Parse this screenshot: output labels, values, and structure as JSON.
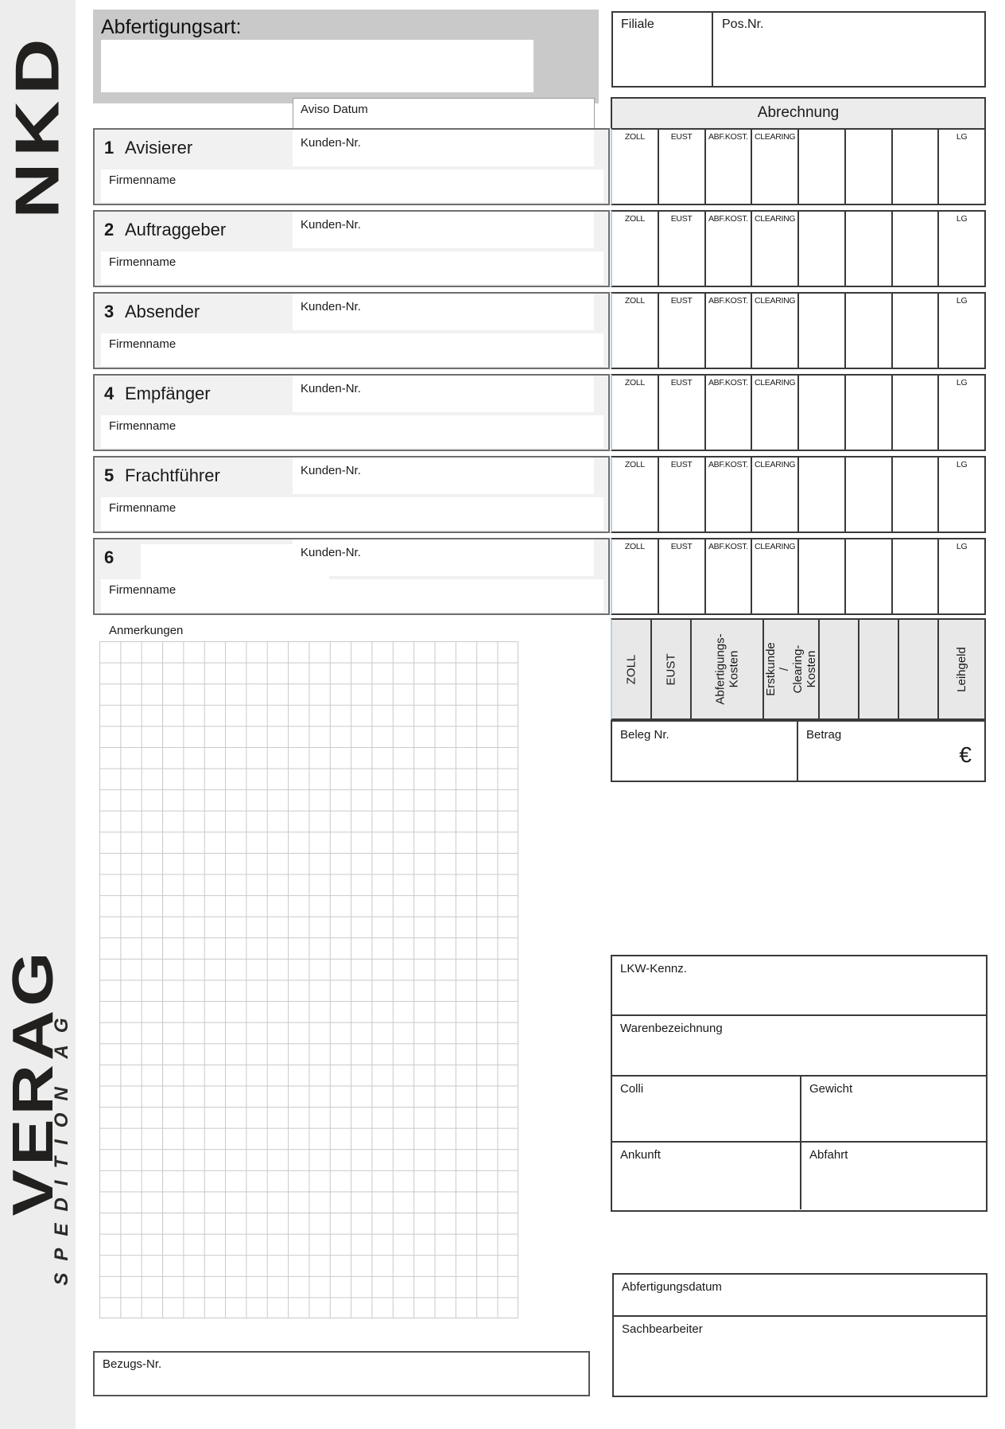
{
  "brand": {
    "top_logo": "NKD",
    "bottom_logo": "VERAG",
    "bottom_logo_sub": "SPEDITION AG"
  },
  "header": {
    "abfertigungsart_label": "Abfertigungsart:",
    "abfertigungsart_value": "",
    "filiale_label": "Filiale",
    "pos_nr_label": "Pos.Nr.",
    "aviso_datum_label": "Aviso Datum"
  },
  "abrechnung": {
    "title": "Abrechnung",
    "columns": [
      "ZOLL",
      "EUST",
      "ABF.KOST.",
      "CLEARING",
      "",
      "",
      "",
      "LG"
    ],
    "footer_labels": [
      "ZOLL",
      "EUST",
      "Abfertigungs-\nKosten",
      "Erstkunde /\nClearing-Kosten",
      "",
      "",
      "",
      "Leihgeld"
    ],
    "beleg_label": "Beleg Nr.",
    "betrag_label": "Betrag",
    "currency": "€"
  },
  "sections": [
    {
      "num": "1",
      "title": "Avisierer",
      "kunden_label": "Kunden-Nr.",
      "firma_label": "Firmenname"
    },
    {
      "num": "2",
      "title": "Auftraggeber",
      "kunden_label": "Kunden-Nr.",
      "firma_label": "Firmenname"
    },
    {
      "num": "3",
      "title": "Absender",
      "kunden_label": "Kunden-Nr.",
      "firma_label": "Firmenname"
    },
    {
      "num": "4",
      "title": "Empfänger",
      "kunden_label": "Kunden-Nr.",
      "firma_label": "Firmenname"
    },
    {
      "num": "5",
      "title": "Frachtführer",
      "kunden_label": "Kunden-Nr.",
      "firma_label": "Firmenname"
    },
    {
      "num": "6",
      "title": "",
      "kunden_label": "Kunden-Nr.",
      "firma_label": "Firmenname"
    }
  ],
  "anmerkungen": {
    "label": "Anmerkungen"
  },
  "shipment": {
    "lkw_label": "LKW-Kennz.",
    "waren_label": "Warenbezeichnung",
    "colli_label": "Colli",
    "gewicht_label": "Gewicht",
    "ankunft_label": "Ankunft",
    "abfahrt_label": "Abfahrt"
  },
  "processing": {
    "abfertigungsdatum_label": "Abfertigungsdatum",
    "sachbearbeiter_label": "Sachbearbeiter"
  },
  "bezug": {
    "label": "Bezugs-Nr."
  },
  "colors": {
    "border_dark": "#3a3a3a",
    "panel_gray": "#f1f1f1",
    "header_gray": "#c9c9c9",
    "sidebar_gray": "#ededed"
  }
}
